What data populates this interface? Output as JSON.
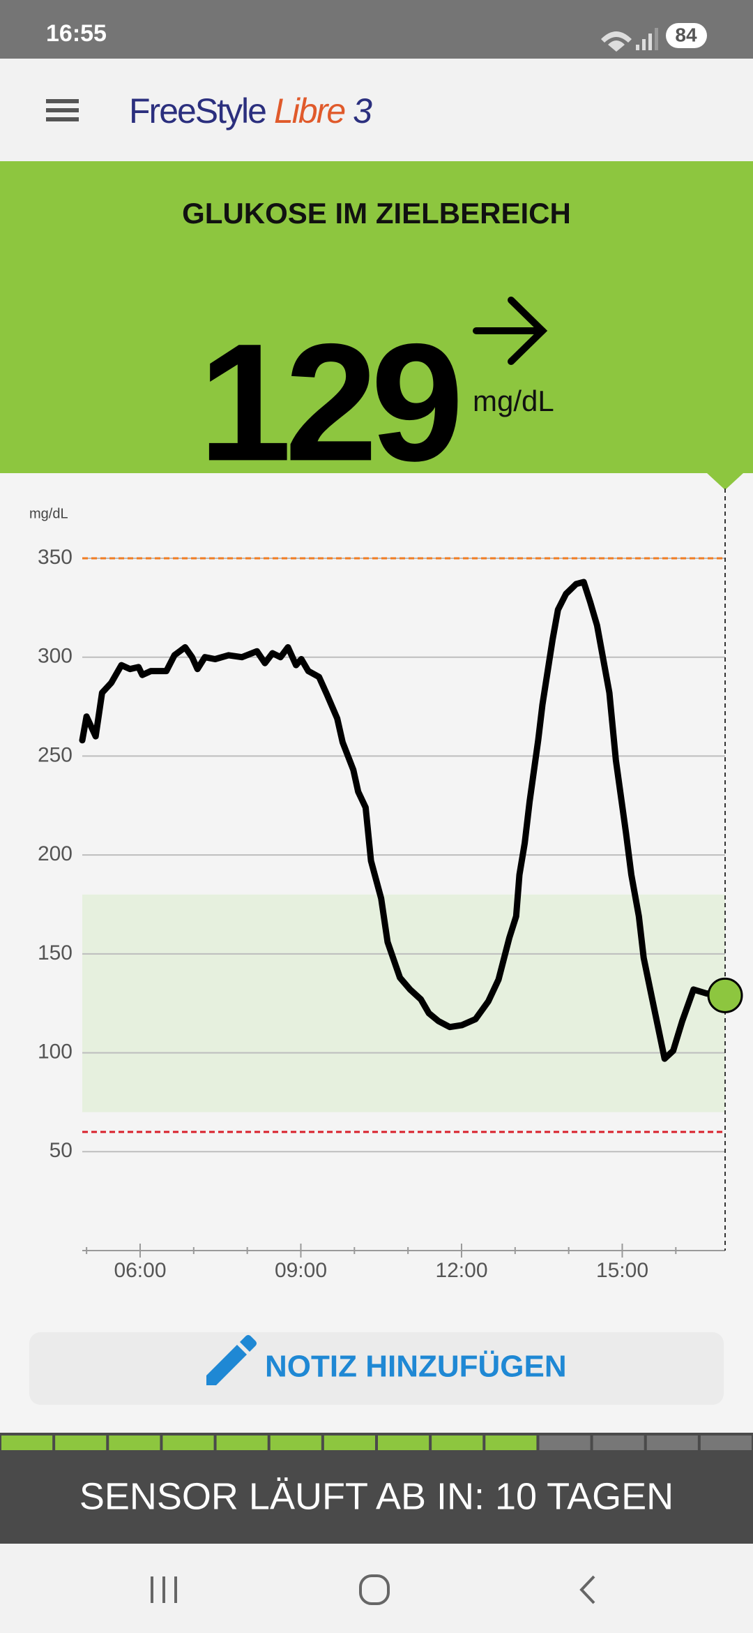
{
  "status_bar": {
    "time": "16:55",
    "battery": "84"
  },
  "header": {
    "brand": "FreeStyle",
    "product": "Libre",
    "version": "3"
  },
  "glucose": {
    "status": "GLUKOSE IM ZIELBEREICH",
    "value": "129",
    "unit": "mg/dL"
  },
  "chart_data": {
    "type": "line",
    "y_label": "mg/dL",
    "color": "#000000",
    "x": [
      4.92,
      5.0,
      5.17,
      5.29,
      5.46,
      5.65,
      5.81,
      5.97,
      6.04,
      6.2,
      6.49,
      6.64,
      6.84,
      6.97,
      7.07,
      7.21,
      7.4,
      7.65,
      7.9,
      8.18,
      8.33,
      8.47,
      8.62,
      8.76,
      8.91,
      9.01,
      9.14,
      9.34,
      9.49,
      9.68,
      9.78,
      9.98,
      10.07,
      10.21,
      10.31,
      10.5,
      10.62,
      10.85,
      11.04,
      11.24,
      11.39,
      11.57,
      11.78,
      12.01,
      12.26,
      12.5,
      12.69,
      12.89,
      13.02,
      13.08,
      13.18,
      13.27,
      13.43,
      13.51,
      13.7,
      13.8,
      13.95,
      14.14,
      14.28,
      14.4,
      14.53,
      14.76,
      14.88,
      15.07,
      15.17,
      15.31,
      15.4,
      15.56,
      15.66,
      15.79,
      15.95,
      16.12,
      16.33,
      16.57,
      16.92
    ],
    "values": [
      258,
      270,
      260,
      282,
      287,
      296,
      294,
      295,
      291,
      293,
      293,
      301,
      305,
      300,
      294,
      300,
      299,
      301,
      300,
      303,
      297,
      302,
      300,
      305,
      296,
      299,
      293,
      290,
      281,
      269,
      257,
      243,
      232,
      224,
      197,
      178,
      156,
      138,
      132,
      127,
      120,
      116,
      113,
      114,
      117,
      126,
      137,
      158,
      169,
      190,
      206,
      227,
      258,
      276,
      309,
      324,
      332,
      337,
      338,
      328,
      316,
      282,
      248,
      211,
      190,
      169,
      148,
      127,
      114,
      97,
      101,
      116,
      132,
      130,
      129
    ],
    "xlim": [
      4.92,
      16.92
    ],
    "xticks": [
      {
        "value": 6,
        "label": "06:00"
      },
      {
        "value": 9,
        "label": "09:00"
      },
      {
        "value": 12,
        "label": "12:00"
      },
      {
        "value": 15,
        "label": "15:00"
      }
    ],
    "xminorticks": [
      5,
      7,
      8,
      10,
      11,
      13,
      14,
      16
    ],
    "ylim": [
      0,
      350
    ],
    "yticks": [
      50,
      100,
      150,
      200,
      250,
      300,
      350
    ],
    "grid": true,
    "target_range": [
      70,
      180
    ],
    "target_color": "#e6f0de",
    "high_line": 350,
    "high_color": "#f07d22",
    "low_line": 60,
    "low_color": "#d8202a",
    "marker_color": "#8dc63f"
  },
  "note_button": {
    "label": "NOTIZ HINZUFÜGEN"
  },
  "sensor": {
    "label": "SENSOR LÄUFT AB IN: 10 TAGEN",
    "segments_total": 14,
    "segments_filled": 10
  }
}
